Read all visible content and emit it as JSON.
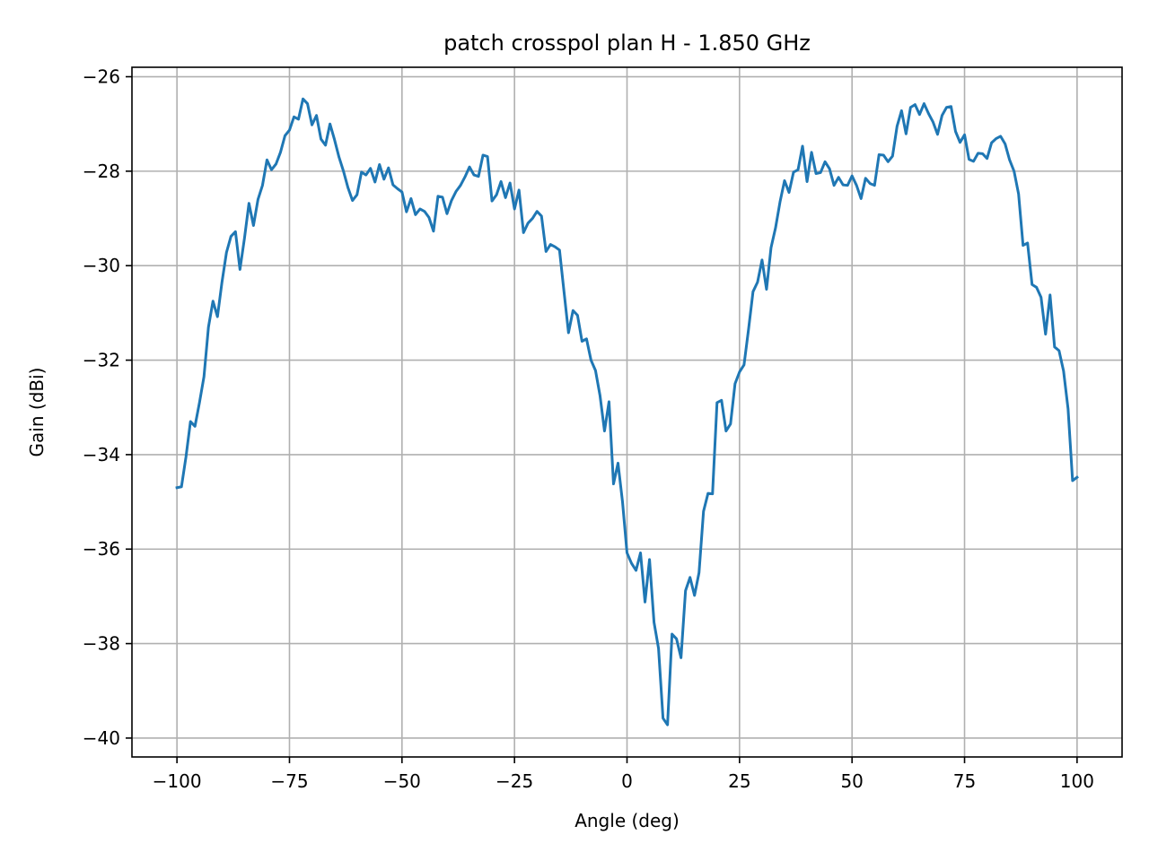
{
  "chart_data": {
    "type": "line",
    "title": "patch crosspol plan H - 1.850 GHz",
    "xlabel": "Angle (deg)",
    "ylabel": "Gain (dBi)",
    "xlim": [
      -110,
      110
    ],
    "ylim": [
      -40.4,
      -25.8
    ],
    "xticks": [
      -100,
      -75,
      -50,
      -25,
      0,
      25,
      50,
      75,
      100
    ],
    "xtick_labels": [
      "−100",
      "−75",
      "−50",
      "−25",
      "0",
      "25",
      "50",
      "75",
      "100"
    ],
    "yticks": [
      -40,
      -38,
      -36,
      -34,
      -32,
      -30,
      -28,
      -26
    ],
    "ytick_labels": [
      "−40",
      "−38",
      "−36",
      "−34",
      "−32",
      "−30",
      "−28",
      "−26"
    ],
    "grid": true,
    "colors": {
      "series": "#1f77b4"
    },
    "series": [
      {
        "x": [
          -100,
          -99,
          -98,
          -97,
          -96,
          -95,
          -94,
          -93,
          -92,
          -91,
          -90,
          -89,
          -88,
          -87,
          -86,
          -85,
          -84,
          -83,
          -82,
          -81,
          -80,
          -79,
          -78,
          -77,
          -76,
          -75,
          -74,
          -73,
          -72,
          -71,
          -70,
          -69,
          -68,
          -67,
          -66,
          -65,
          -64,
          -63,
          -62,
          -61,
          -60,
          -59,
          -58,
          -57,
          -56,
          -55,
          -54,
          -53,
          -52,
          -51,
          -50,
          -49,
          -48,
          -47,
          -46,
          -45,
          -44,
          -43,
          -42,
          -41,
          -40,
          -39,
          -38,
          -37,
          -36,
          -35,
          -34,
          -33,
          -32,
          -31,
          -30,
          -29,
          -28,
          -27,
          -26,
          -25,
          -24,
          -23,
          -22,
          -21,
          -20,
          -19,
          -18,
          -17,
          -16,
          -15,
          -14,
          -13,
          -12,
          -11,
          -10,
          -9,
          -8,
          -7,
          -6,
          -5,
          -4,
          -3,
          -2,
          -1,
          0,
          1,
          2,
          3,
          4,
          5,
          6,
          7,
          8,
          9,
          10,
          11,
          12,
          13,
          14,
          15,
          16,
          17,
          18,
          19,
          20,
          21,
          22,
          23,
          24,
          25,
          26,
          27,
          28,
          29,
          30,
          31,
          32,
          33,
          34,
          35,
          36,
          37,
          38,
          39,
          40,
          41,
          42,
          43,
          44,
          45,
          46,
          47,
          48,
          49,
          50,
          51,
          52,
          53,
          54,
          55,
          56,
          57,
          58,
          59,
          60,
          61,
          62,
          63,
          64,
          65,
          66,
          67,
          68,
          69,
          70,
          71,
          72,
          73,
          74,
          75,
          76,
          77,
          78,
          79,
          80,
          81,
          82,
          83,
          84,
          85,
          86,
          87,
          88,
          89,
          90,
          91,
          92,
          93,
          94,
          95,
          96,
          97,
          98,
          99,
          100
        ],
        "y": [
          -34.7,
          -34.68,
          -34.05,
          -33.3,
          -33.4,
          -32.9,
          -32.35,
          -31.3,
          -30.75,
          -31.08,
          -30.35,
          -29.72,
          -29.38,
          -29.28,
          -30.08,
          -29.42,
          -28.68,
          -29.15,
          -28.6,
          -28.3,
          -27.76,
          -27.97,
          -27.85,
          -27.6,
          -27.25,
          -27.13,
          -26.85,
          -26.9,
          -26.47,
          -26.57,
          -27.02,
          -26.82,
          -27.32,
          -27.45,
          -27.0,
          -27.33,
          -27.7,
          -28.0,
          -28.35,
          -28.62,
          -28.5,
          -28.02,
          -28.08,
          -27.94,
          -28.23,
          -27.86,
          -28.17,
          -27.93,
          -28.29,
          -28.37,
          -28.44,
          -28.86,
          -28.58,
          -28.92,
          -28.8,
          -28.85,
          -28.98,
          -29.27,
          -28.53,
          -28.55,
          -28.9,
          -28.62,
          -28.43,
          -28.3,
          -28.12,
          -27.91,
          -28.08,
          -28.11,
          -27.66,
          -27.69,
          -28.63,
          -28.5,
          -28.22,
          -28.56,
          -28.25,
          -28.8,
          -28.4,
          -29.3,
          -29.1,
          -29.0,
          -28.85,
          -28.95,
          -29.7,
          -29.55,
          -29.6,
          -29.67,
          -30.55,
          -31.42,
          -30.95,
          -31.05,
          -31.6,
          -31.55,
          -32.0,
          -32.22,
          -32.75,
          -33.5,
          -32.88,
          -34.62,
          -34.18,
          -35.0,
          -36.08,
          -36.3,
          -36.45,
          -36.08,
          -37.12,
          -36.22,
          -37.55,
          -38.1,
          -39.58,
          -39.72,
          -37.8,
          -37.9,
          -38.3,
          -36.88,
          -36.6,
          -36.98,
          -36.5,
          -35.2,
          -34.82,
          -34.83,
          -32.9,
          -32.85,
          -33.5,
          -33.35,
          -32.5,
          -32.25,
          -32.1,
          -31.35,
          -30.55,
          -30.35,
          -29.88,
          -30.5,
          -29.62,
          -29.2,
          -28.65,
          -28.2,
          -28.45,
          -28.02,
          -27.97,
          -27.47,
          -28.22,
          -27.6,
          -28.05,
          -28.03,
          -27.8,
          -27.95,
          -28.3,
          -28.13,
          -28.29,
          -28.3,
          -28.1,
          -28.3,
          -28.58,
          -28.15,
          -28.26,
          -28.3,
          -27.65,
          -27.66,
          -27.8,
          -27.68,
          -27.05,
          -26.72,
          -27.21,
          -26.65,
          -26.59,
          -26.8,
          -26.57,
          -26.78,
          -26.96,
          -27.22,
          -26.82,
          -26.65,
          -26.63,
          -27.16,
          -27.39,
          -27.23,
          -27.75,
          -27.79,
          -27.62,
          -27.63,
          -27.73,
          -27.4,
          -27.31,
          -27.26,
          -27.42,
          -27.76,
          -28.0,
          -28.48,
          -29.57,
          -29.52,
          -30.4,
          -30.46,
          -30.67,
          -31.45,
          -30.62,
          -31.72,
          -31.8,
          -32.23,
          -33.03,
          -34.55,
          -34.48
        ]
      }
    ]
  }
}
